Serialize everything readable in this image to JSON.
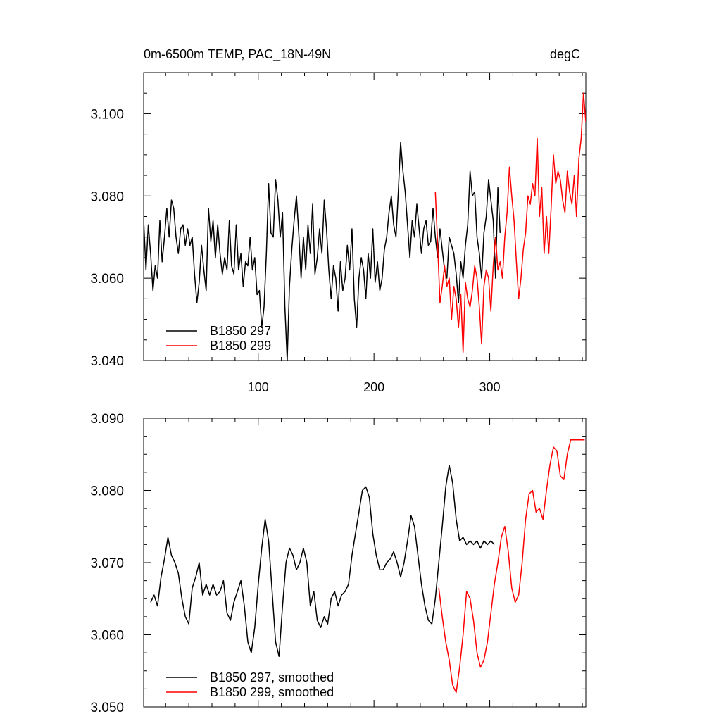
{
  "chart_data": [
    {
      "type": "line",
      "title_left": "0m-6500m TEMP, PAC_18N-49N",
      "title_right": "degC",
      "xlabel": "",
      "ylabel": "",
      "xlim": [
        1,
        383
      ],
      "ylim": [
        3.04,
        3.11
      ],
      "xticks": [
        100,
        200,
        300
      ],
      "yticks": [
        3.04,
        3.06,
        3.08,
        3.1
      ],
      "ytick_labels": [
        "3.040",
        "3.060",
        "3.080",
        "3.100"
      ],
      "legend": {
        "placement": "bottom-left",
        "entries": [
          "B1850 297",
          "B1850 299"
        ]
      },
      "series": [
        {
          "name": "B1850 297",
          "color": "#000000",
          "x": [
            1,
            3,
            5,
            7,
            9,
            11,
            13,
            15,
            17,
            19,
            21,
            23,
            25,
            27,
            29,
            31,
            33,
            35,
            37,
            39,
            41,
            43,
            45,
            47,
            49,
            51,
            53,
            55,
            57,
            59,
            61,
            63,
            65,
            67,
            69,
            71,
            73,
            75,
            77,
            79,
            81,
            83,
            85,
            87,
            89,
            91,
            93,
            95,
            97,
            99,
            101,
            103,
            105,
            107,
            109,
            111,
            113,
            115,
            117,
            119,
            121,
            123,
            125,
            127,
            129,
            131,
            133,
            135,
            137,
            139,
            141,
            143,
            145,
            147,
            149,
            151,
            153,
            155,
            157,
            159,
            161,
            163,
            165,
            167,
            169,
            171,
            173,
            175,
            177,
            179,
            181,
            183,
            185,
            187,
            189,
            191,
            193,
            195,
            197,
            199,
            201,
            203,
            205,
            207,
            209,
            211,
            213,
            215,
            217,
            219,
            221,
            223,
            225,
            227,
            229,
            231,
            233,
            235,
            237,
            239,
            241,
            243,
            245,
            247,
            249,
            251,
            253,
            255,
            257,
            259,
            261,
            263,
            265,
            267,
            269,
            271,
            273,
            275,
            277,
            279,
            281,
            283,
            285,
            287,
            289,
            291,
            293,
            295,
            297,
            299,
            301,
            303,
            305,
            307,
            309
          ],
          "values": [
            3.074,
            3.062,
            3.073,
            3.066,
            3.057,
            3.063,
            3.06,
            3.074,
            3.064,
            3.07,
            3.077,
            3.07,
            3.079,
            3.077,
            3.07,
            3.066,
            3.072,
            3.073,
            3.068,
            3.072,
            3.068,
            3.07,
            3.061,
            3.054,
            3.059,
            3.068,
            3.062,
            3.057,
            3.077,
            3.069,
            3.074,
            3.065,
            3.073,
            3.066,
            3.061,
            3.065,
            3.062,
            3.074,
            3.063,
            3.061,
            3.073,
            3.062,
            3.066,
            3.058,
            3.064,
            3.063,
            3.07,
            3.062,
            3.065,
            3.056,
            3.057,
            3.048,
            3.053,
            3.066,
            3.083,
            3.071,
            3.07,
            3.084,
            3.079,
            3.07,
            3.076,
            3.053,
            3.04,
            3.058,
            3.067,
            3.074,
            3.08,
            3.071,
            3.06,
            3.07,
            3.062,
            3.073,
            3.066,
            3.078,
            3.061,
            3.065,
            3.072,
            3.066,
            3.079,
            3.072,
            3.062,
            3.055,
            3.063,
            3.06,
            3.052,
            3.064,
            3.057,
            3.06,
            3.068,
            3.062,
            3.072,
            3.055,
            3.048,
            3.06,
            3.065,
            3.062,
            3.055,
            3.066,
            3.06,
            3.072,
            3.059,
            3.064,
            3.057,
            3.06,
            3.067,
            3.07,
            3.076,
            3.08,
            3.073,
            3.07,
            3.081,
            3.093,
            3.086,
            3.081,
            3.073,
            3.065,
            3.074,
            3.07,
            3.078,
            3.072,
            3.066,
            3.072,
            3.074,
            3.068,
            3.069,
            3.077,
            3.07,
            3.065,
            3.072,
            3.067,
            3.062,
            3.06,
            3.07,
            3.068,
            3.066,
            3.061,
            3.054,
            3.064,
            3.06,
            3.068,
            3.073,
            3.086,
            3.08,
            3.081,
            3.07,
            3.066,
            3.06,
            3.071,
            3.075,
            3.084,
            3.079,
            3.074,
            3.06,
            3.082,
            3.071
          ]
        },
        {
          "name": "B1850 299",
          "color": "#ff0000",
          "x": [
            253,
            255,
            257,
            259,
            261,
            263,
            265,
            267,
            269,
            271,
            273,
            275,
            277,
            279,
            281,
            283,
            285,
            287,
            289,
            291,
            293,
            295,
            297,
            299,
            301,
            303,
            305,
            307,
            309,
            311,
            313,
            315,
            317,
            319,
            321,
            323,
            325,
            327,
            329,
            331,
            333,
            335,
            337,
            339,
            341,
            343,
            345,
            347,
            349,
            351,
            353,
            355,
            357,
            359,
            361,
            363,
            365,
            367,
            369,
            371,
            373,
            375,
            377,
            379,
            381,
            383
          ],
          "values": [
            3.081,
            3.068,
            3.054,
            3.058,
            3.063,
            3.058,
            3.06,
            3.05,
            3.058,
            3.055,
            3.048,
            3.056,
            3.042,
            3.059,
            3.055,
            3.053,
            3.057,
            3.063,
            3.06,
            3.053,
            3.044,
            3.058,
            3.062,
            3.06,
            3.052,
            3.063,
            3.07,
            3.062,
            3.064,
            3.06,
            3.07,
            3.076,
            3.087,
            3.08,
            3.074,
            3.064,
            3.055,
            3.06,
            3.067,
            3.071,
            3.08,
            3.078,
            3.083,
            3.08,
            3.094,
            3.075,
            3.082,
            3.066,
            3.075,
            3.066,
            3.077,
            3.09,
            3.083,
            3.086,
            3.084,
            3.079,
            3.076,
            3.086,
            3.081,
            3.078,
            3.085,
            3.075,
            3.089,
            3.094,
            3.105,
            3.098
          ]
        }
      ]
    },
    {
      "type": "line",
      "title_left": "",
      "title_right": "",
      "xlabel": "",
      "ylabel": "",
      "xlim": [
        1,
        383
      ],
      "ylim": [
        3.05,
        3.09
      ],
      "xticks": [
        100,
        200,
        300
      ],
      "yticks": [
        3.05,
        3.06,
        3.07,
        3.08,
        3.09
      ],
      "ytick_labels": [
        "3.050",
        "3.060",
        "3.070",
        "3.080",
        "3.090"
      ],
      "legend": {
        "placement": "bottom-left",
        "entries": [
          "B1850 297, smoothed",
          "B1850 299, smoothed"
        ]
      },
      "series": [
        {
          "name": "B1850 297, smoothed",
          "color": "#000000",
          "x": [
            7,
            10,
            13,
            16,
            19,
            22,
            25,
            28,
            31,
            34,
            37,
            40,
            43,
            46,
            49,
            52,
            55,
            58,
            61,
            64,
            67,
            70,
            73,
            76,
            79,
            82,
            85,
            88,
            91,
            94,
            97,
            100,
            103,
            106,
            109,
            112,
            115,
            118,
            121,
            124,
            127,
            130,
            133,
            136,
            139,
            142,
            145,
            148,
            151,
            154,
            157,
            160,
            163,
            166,
            169,
            172,
            175,
            178,
            181,
            184,
            187,
            190,
            193,
            196,
            199,
            202,
            205,
            208,
            211,
            214,
            217,
            220,
            223,
            226,
            229,
            232,
            235,
            238,
            241,
            244,
            247,
            250,
            253,
            256,
            259,
            262,
            265,
            268,
            271,
            274,
            277,
            280,
            283,
            286,
            289,
            292,
            295,
            298,
            301,
            304
          ],
          "values": [
            3.0645,
            3.0655,
            3.064,
            3.068,
            3.0705,
            3.0735,
            3.071,
            3.07,
            3.0685,
            3.065,
            3.0625,
            3.0615,
            3.0665,
            3.068,
            3.07,
            3.0655,
            3.067,
            3.0655,
            3.067,
            3.0655,
            3.066,
            3.0675,
            3.063,
            3.062,
            3.0645,
            3.066,
            3.0675,
            3.064,
            3.059,
            3.0575,
            3.061,
            3.067,
            3.072,
            3.076,
            3.073,
            3.066,
            3.059,
            3.057,
            3.064,
            3.07,
            3.072,
            3.071,
            3.069,
            3.07,
            3.072,
            3.07,
            3.064,
            3.066,
            3.062,
            3.061,
            3.0625,
            3.0615,
            3.065,
            3.066,
            3.064,
            3.0655,
            3.066,
            3.067,
            3.071,
            3.074,
            3.077,
            3.08,
            3.0805,
            3.079,
            3.074,
            3.071,
            3.069,
            3.069,
            3.07,
            3.0705,
            3.0715,
            3.07,
            3.068,
            3.07,
            3.073,
            3.0765,
            3.075,
            3.071,
            3.067,
            3.064,
            3.062,
            3.0615,
            3.065,
            3.07,
            3.075,
            3.0805,
            3.0835,
            3.081,
            3.076,
            3.073,
            3.0735,
            3.0725,
            3.073,
            3.0725,
            3.073,
            3.072,
            3.073,
            3.0725,
            3.073,
            3.0725
          ]
        },
        {
          "name": "B1850 299, smoothed",
          "color": "#ff0000",
          "x": [
            256,
            259,
            262,
            265,
            268,
            271,
            274,
            277,
            280,
            283,
            286,
            289,
            292,
            295,
            298,
            301,
            304,
            307,
            310,
            313,
            316,
            319,
            322,
            325,
            328,
            331,
            334,
            337,
            340,
            343,
            346,
            349,
            352,
            355,
            358,
            361,
            364,
            367,
            370,
            373,
            376,
            379,
            382
          ],
          "values": [
            3.0665,
            3.0625,
            3.059,
            3.0565,
            3.053,
            3.052,
            3.0555,
            3.06,
            3.066,
            3.065,
            3.062,
            3.0575,
            3.0555,
            3.0565,
            3.059,
            3.063,
            3.067,
            3.07,
            3.0735,
            3.075,
            3.0715,
            3.0665,
            3.0645,
            3.0655,
            3.07,
            3.076,
            3.0795,
            3.08,
            3.077,
            3.0775,
            3.076,
            3.08,
            3.0835,
            3.086,
            3.0855,
            3.082,
            3.0815,
            3.085,
            3.087,
            3.087,
            3.087,
            3.087,
            3.087
          ]
        }
      ]
    }
  ]
}
